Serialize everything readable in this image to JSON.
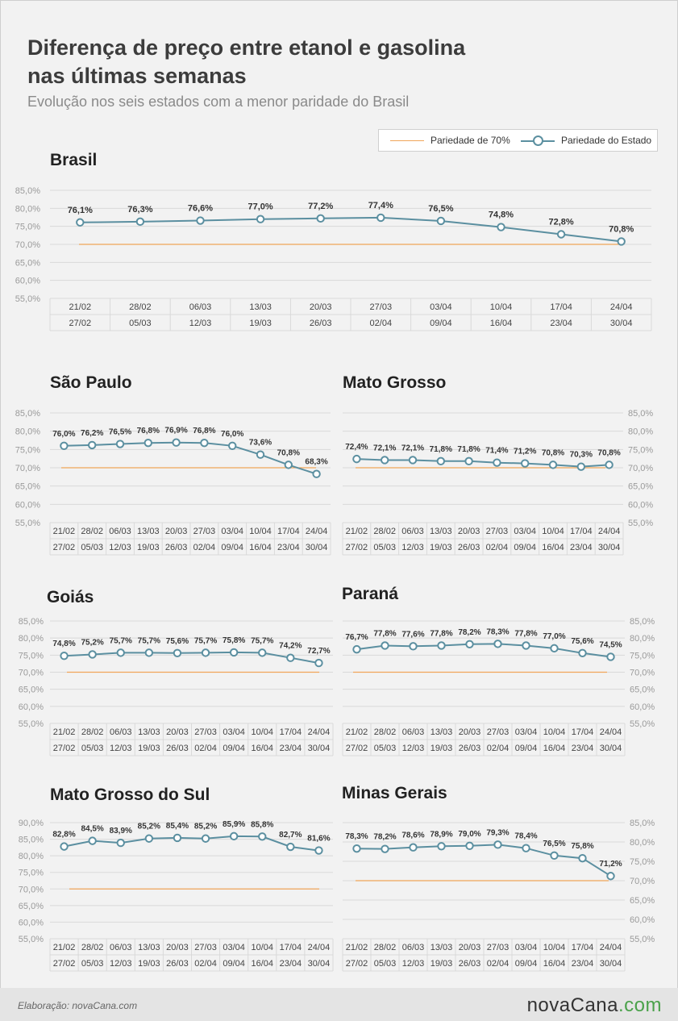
{
  "header": {
    "title": "Diferença de preço entre etanol e gasolina\nnas últimas semanas",
    "subtitle": "Evolução nos seis estados com a menor paridade do Brasil"
  },
  "legend": {
    "reference_label": "Pariedade de 70%",
    "series_label": "Pariedade do Estado"
  },
  "colors": {
    "series": "#5b8fa0",
    "reference": "#f0a55a",
    "grid": "#d9d9d9"
  },
  "footer": {
    "credit": "Elaboração: novaCana.com",
    "logo_main": "novaCana",
    "logo_suffix": ".com"
  },
  "chart_data": [
    {
      "title": "Brasil",
      "type": "line",
      "x_start": [
        "21/02",
        "28/02",
        "06/03",
        "13/03",
        "20/03",
        "27/03",
        "03/04",
        "10/04",
        "17/04",
        "24/04"
      ],
      "x_end": [
        "27/02",
        "05/03",
        "12/03",
        "19/03",
        "26/03",
        "02/04",
        "09/04",
        "16/04",
        "23/04",
        "30/04"
      ],
      "values": [
        76.1,
        76.3,
        76.6,
        77.0,
        77.2,
        77.4,
        76.5,
        74.8,
        72.8,
        70.8
      ],
      "value_labels": [
        "76,1%",
        "76,3%",
        "76,6%",
        "77,0%",
        "77,2%",
        "77,4%",
        "76,5%",
        "74,8%",
        "72,8%",
        "70,8%"
      ],
      "reference": 70,
      "ylim": [
        55,
        85
      ],
      "y_ticks": [
        "85,0%",
        "80,0%",
        "75,0%",
        "70,0%",
        "65,0%",
        "60,0%",
        "55,0%"
      ],
      "y_axis_side": "left"
    },
    {
      "title": "São Paulo",
      "type": "line",
      "x_start": [
        "21/02",
        "28/02",
        "06/03",
        "13/03",
        "20/03",
        "27/03",
        "03/04",
        "10/04",
        "17/04",
        "24/04"
      ],
      "x_end": [
        "27/02",
        "05/03",
        "12/03",
        "19/03",
        "26/03",
        "02/04",
        "09/04",
        "16/04",
        "23/04",
        "30/04"
      ],
      "values": [
        76.0,
        76.2,
        76.5,
        76.8,
        76.9,
        76.8,
        76.0,
        73.6,
        70.8,
        68.3
      ],
      "value_labels": [
        "76,0%",
        "76,2%",
        "76,5%",
        "76,8%",
        "76,9%",
        "76,8%",
        "76,0%",
        "73,6%",
        "70,8%",
        "68,3%"
      ],
      "reference": 70,
      "ylim": [
        55,
        85
      ],
      "y_ticks": [
        "85,0%",
        "80,0%",
        "75,0%",
        "70,0%",
        "65,0%",
        "60,0%",
        "55,0%"
      ],
      "y_axis_side": "left"
    },
    {
      "title": "Mato Grosso",
      "type": "line",
      "x_start": [
        "21/02",
        "28/02",
        "06/03",
        "13/03",
        "20/03",
        "27/03",
        "03/04",
        "10/04",
        "17/04",
        "24/04"
      ],
      "x_end": [
        "27/02",
        "05/03",
        "12/03",
        "19/03",
        "26/03",
        "02/04",
        "09/04",
        "16/04",
        "23/04",
        "30/04"
      ],
      "values": [
        72.4,
        72.1,
        72.1,
        71.8,
        71.8,
        71.4,
        71.2,
        70.8,
        70.3,
        70.8
      ],
      "value_labels": [
        "72,4%",
        "72,1%",
        "72,1%",
        "71,8%",
        "71,8%",
        "71,4%",
        "71,2%",
        "70,8%",
        "70,3%",
        "70,8%"
      ],
      "reference": 70,
      "ylim": [
        55,
        85
      ],
      "y_ticks": [
        "85,0%",
        "80,0%",
        "75,0%",
        "70,0%",
        "65,0%",
        "60,0%",
        "55,0%"
      ],
      "y_axis_side": "right"
    },
    {
      "title": "Goiás",
      "type": "line",
      "x_start": [
        "21/02",
        "28/02",
        "06/03",
        "13/03",
        "20/03",
        "27/03",
        "03/04",
        "10/04",
        "17/04",
        "24/04"
      ],
      "x_end": [
        "27/02",
        "05/03",
        "12/03",
        "19/03",
        "26/03",
        "02/04",
        "09/04",
        "16/04",
        "23/04",
        "30/04"
      ],
      "values": [
        74.8,
        75.2,
        75.7,
        75.7,
        75.6,
        75.7,
        75.8,
        75.7,
        74.2,
        72.7
      ],
      "value_labels": [
        "74,8%",
        "75,2%",
        "75,7%",
        "75,7%",
        "75,6%",
        "75,7%",
        "75,8%",
        "75,7%",
        "74,2%",
        "72,7%"
      ],
      "reference": 70,
      "ylim": [
        55,
        85
      ],
      "y_ticks": [
        "85,0%",
        "80,0%",
        "75,0%",
        "70,0%",
        "65,0%",
        "60,0%",
        "55,0%"
      ],
      "y_axis_side": "left"
    },
    {
      "title": "Paraná",
      "type": "line",
      "x_start": [
        "21/02",
        "28/02",
        "06/03",
        "13/03",
        "20/03",
        "27/03",
        "03/04",
        "10/04",
        "17/04",
        "24/04"
      ],
      "x_end": [
        "27/02",
        "05/03",
        "12/03",
        "19/03",
        "26/03",
        "02/04",
        "09/04",
        "16/04",
        "23/04",
        "30/04"
      ],
      "values": [
        76.7,
        77.8,
        77.6,
        77.8,
        78.2,
        78.3,
        77.8,
        77.0,
        75.6,
        74.5
      ],
      "value_labels": [
        "76,7%",
        "77,8%",
        "77,6%",
        "77,8%",
        "78,2%",
        "78,3%",
        "77,8%",
        "77,0%",
        "75,6%",
        "74,5%"
      ],
      "reference": 70,
      "ylim": [
        55,
        85
      ],
      "y_ticks": [
        "85,0%",
        "80,0%",
        "75,0%",
        "70,0%",
        "65,0%",
        "60,0%",
        "55,0%"
      ],
      "y_axis_side": "right"
    },
    {
      "title": "Mato Grosso do Sul",
      "type": "line",
      "x_start": [
        "21/02",
        "28/02",
        "06/03",
        "13/03",
        "20/03",
        "27/03",
        "03/04",
        "10/04",
        "17/04",
        "24/04"
      ],
      "x_end": [
        "27/02",
        "05/03",
        "12/03",
        "19/03",
        "26/03",
        "02/04",
        "09/04",
        "16/04",
        "23/04",
        "30/04"
      ],
      "values": [
        82.8,
        84.5,
        83.9,
        85.2,
        85.4,
        85.2,
        85.9,
        85.8,
        82.7,
        81.6
      ],
      "value_labels": [
        "82,8%",
        "84,5%",
        "83,9%",
        "85,2%",
        "85,4%",
        "85,2%",
        "85,9%",
        "85,8%",
        "82,7%",
        "81,6%"
      ],
      "reference": 70,
      "ylim": [
        55,
        90
      ],
      "y_ticks": [
        "90,0%",
        "85,0%",
        "80,0%",
        "75,0%",
        "70,0%",
        "65,0%",
        "60,0%",
        "55,0%"
      ],
      "y_axis_side": "left"
    },
    {
      "title": "Minas Gerais",
      "type": "line",
      "x_start": [
        "21/02",
        "28/02",
        "06/03",
        "13/03",
        "20/03",
        "27/03",
        "03/04",
        "10/04",
        "17/04",
        "24/04"
      ],
      "x_end": [
        "27/02",
        "05/03",
        "12/03",
        "19/03",
        "26/03",
        "02/04",
        "09/04",
        "16/04",
        "23/04",
        "30/04"
      ],
      "values": [
        78.3,
        78.2,
        78.6,
        78.9,
        79.0,
        79.3,
        78.4,
        76.5,
        75.8,
        71.2
      ],
      "value_labels": [
        "78,3%",
        "78,2%",
        "78,6%",
        "78,9%",
        "79,0%",
        "79,3%",
        "78,4%",
        "76,5%",
        "75,8%",
        "71,2%"
      ],
      "reference": 70,
      "ylim": [
        55,
        85
      ],
      "y_ticks": [
        "85,0%",
        "80,0%",
        "75,0%",
        "70,0%",
        "65,0%",
        "60,0%",
        "55,0%"
      ],
      "y_axis_side": "right"
    }
  ]
}
